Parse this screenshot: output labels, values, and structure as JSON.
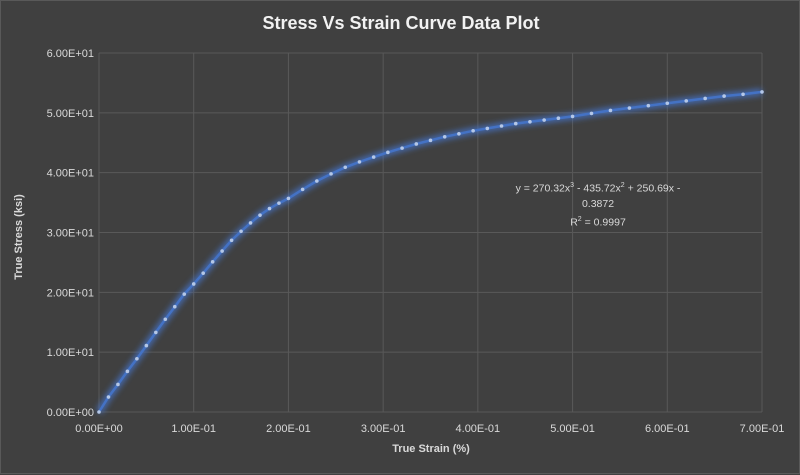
{
  "chart_data": {
    "type": "scatter",
    "title": "Stress Vs Strain Curve Data Plot",
    "xlabel": "True Strain (%)",
    "ylabel": "True Stress (ksi)",
    "xlim": [
      0,
      0.7
    ],
    "ylim": [
      0,
      60
    ],
    "x_ticks": [
      0,
      0.1,
      0.2,
      0.3,
      0.4,
      0.5,
      0.6,
      0.7
    ],
    "y_ticks": [
      0,
      10,
      20,
      30,
      40,
      50,
      60
    ],
    "x_tick_labels": [
      "0.00E+00",
      "1.00E-01",
      "2.00E-01",
      "3.00E-01",
      "4.00E-01",
      "5.00E-01",
      "6.00E-01",
      "7.00E-01"
    ],
    "y_tick_labels": [
      "0.00E+00",
      "1.00E+01",
      "2.00E+01",
      "3.00E+01",
      "4.00E+01",
      "5.00E+01",
      "6.00E+01"
    ],
    "grid": true,
    "legend": "none",
    "series": [
      {
        "color": "#4472c4",
        "x": [
          0.0,
          0.01,
          0.02,
          0.03,
          0.04,
          0.05,
          0.06,
          0.07,
          0.08,
          0.09,
          0.1,
          0.11,
          0.12,
          0.13,
          0.14,
          0.15,
          0.16,
          0.17,
          0.18,
          0.19,
          0.2,
          0.215,
          0.23,
          0.245,
          0.26,
          0.275,
          0.29,
          0.305,
          0.32,
          0.335,
          0.35,
          0.365,
          0.38,
          0.395,
          0.41,
          0.425,
          0.44,
          0.455,
          0.47,
          0.485,
          0.5,
          0.52,
          0.54,
          0.56,
          0.58,
          0.6,
          0.62,
          0.64,
          0.66,
          0.68,
          0.7
        ],
        "y": [
          0.0,
          2.5,
          4.6,
          6.8,
          8.9,
          11.1,
          13.3,
          15.5,
          17.6,
          19.7,
          21.4,
          23.2,
          25.1,
          26.9,
          28.7,
          30.2,
          31.6,
          32.9,
          34.0,
          34.9,
          35.7,
          37.2,
          38.6,
          39.8,
          40.9,
          41.8,
          42.6,
          43.4,
          44.1,
          44.8,
          45.4,
          46.0,
          46.5,
          47.0,
          47.4,
          47.8,
          48.2,
          48.5,
          48.8,
          49.1,
          49.4,
          49.9,
          50.4,
          50.8,
          51.2,
          51.6,
          52.0,
          52.4,
          52.8,
          53.1,
          53.5
        ]
      }
    ],
    "trendline": {
      "type": "polynomial",
      "order": 3,
      "equation": {
        "prefix": "y = 270.32x",
        "exp1": "3",
        "mid1": " - 435.72x",
        "exp2": "2",
        "suffix": " + 250.69x - 0.3872"
      },
      "r_squared": {
        "prefix": "R",
        "exp": "2",
        "suffix": " = 0.9997"
      }
    }
  }
}
